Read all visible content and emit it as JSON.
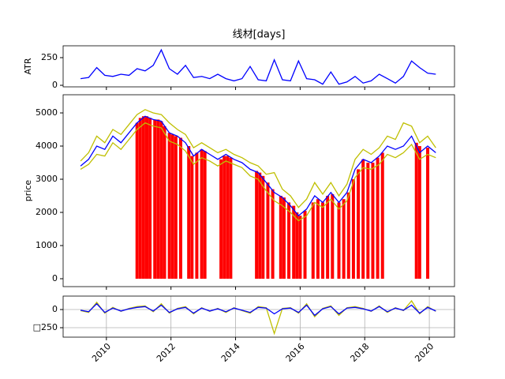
{
  "chart_data": [
    {
      "type": "line",
      "title": "线材[days]",
      "ylabel": "ATR",
      "x": [
        2009.2,
        2009.45,
        2009.7,
        2009.95,
        2010.2,
        2010.45,
        2010.7,
        2010.95,
        2011.2,
        2011.45,
        2011.7,
        2011.95,
        2012.2,
        2012.45,
        2012.7,
        2012.95,
        2013.2,
        2013.45,
        2013.7,
        2013.95,
        2014.2,
        2014.45,
        2014.7,
        2014.95,
        2015.2,
        2015.45,
        2015.7,
        2015.95,
        2016.2,
        2016.45,
        2016.7,
        2016.95,
        2017.2,
        2017.45,
        2017.7,
        2017.95,
        2018.2,
        2018.45,
        2018.7,
        2018.95,
        2019.2,
        2019.45,
        2019.7,
        2019.95,
        2020.2
      ],
      "series": [
        {
          "color": "#0000ff",
          "values": [
            60,
            70,
            160,
            90,
            80,
            100,
            90,
            150,
            130,
            180,
            320,
            150,
            100,
            180,
            70,
            80,
            60,
            100,
            60,
            40,
            60,
            170,
            50,
            40,
            230,
            50,
            40,
            220,
            60,
            50,
            10,
            120,
            10,
            30,
            80,
            20,
            40,
            100,
            60,
            20,
            80,
            220,
            160,
            110,
            100
          ]
        }
      ],
      "xlim": [
        2008.66,
        2020.78
      ],
      "xticks": [
        2010,
        2012,
        2014,
        2016,
        2018,
        2020
      ],
      "ylim": [
        -14,
        357
      ],
      "yticks": [
        0,
        250
      ],
      "grid": false
    },
    {
      "type": "line",
      "ylabel": "price",
      "x": [
        2009.2,
        2009.45,
        2009.7,
        2009.95,
        2010.2,
        2010.45,
        2010.7,
        2010.95,
        2011.2,
        2011.45,
        2011.7,
        2011.95,
        2012.2,
        2012.45,
        2012.7,
        2012.95,
        2013.2,
        2013.45,
        2013.7,
        2013.95,
        2014.2,
        2014.45,
        2014.7,
        2014.95,
        2015.2,
        2015.45,
        2015.7,
        2015.95,
        2016.2,
        2016.45,
        2016.7,
        2016.95,
        2017.2,
        2017.45,
        2017.7,
        2017.95,
        2018.2,
        2018.45,
        2018.7,
        2018.95,
        2019.2,
        2019.45,
        2019.7,
        2019.95,
        2020.2
      ],
      "series": [
        {
          "type": "bar",
          "color": "#ff0000",
          "x": [
            2010.95,
            2011.05,
            2011.15,
            2011.25,
            2011.35,
            2011.5,
            2011.6,
            2011.7,
            2011.8,
            2011.95,
            2012.05,
            2012.15,
            2012.3,
            2012.55,
            2012.65,
            2012.8,
            2012.95,
            2013.05,
            2013.55,
            2013.65,
            2013.75,
            2013.85,
            2014.65,
            2014.75,
            2014.85,
            2015.0,
            2015.15,
            2015.4,
            2015.5,
            2015.65,
            2015.8,
            2015.9,
            2016.0,
            2016.15,
            2016.4,
            2016.55,
            2016.7,
            2016.85,
            2017.0,
            2017.2,
            2017.35,
            2017.5,
            2017.65,
            2017.8,
            2017.95,
            2018.1,
            2018.25,
            2018.4,
            2018.55,
            2019.6,
            2019.7,
            2019.95
          ],
          "values": [
            4700,
            4850,
            4900,
            4900,
            4850,
            4800,
            4800,
            4750,
            4600,
            4400,
            4350,
            4300,
            4250,
            4000,
            3700,
            3800,
            3900,
            3850,
            3600,
            3700,
            3700,
            3650,
            3250,
            3200,
            3100,
            2900,
            2700,
            2500,
            2450,
            2300,
            2200,
            2000,
            1900,
            2050,
            2300,
            2400,
            2300,
            2500,
            2550,
            2300,
            2400,
            2600,
            3000,
            3300,
            3600,
            3500,
            3500,
            3650,
            3800,
            4100,
            4000,
            3950
          ]
        },
        {
          "color": "#bfbf00",
          "values": [
            3550,
            3800,
            4300,
            4100,
            4500,
            4350,
            4650,
            4950,
            5100,
            5000,
            4950,
            4700,
            4500,
            4350,
            3950,
            4100,
            3950,
            3800,
            3900,
            3750,
            3650,
            3500,
            3400,
            3150,
            3200,
            2700,
            2500,
            2150,
            2400,
            2900,
            2550,
            2900,
            2500,
            2850,
            3600,
            3900,
            3750,
            3950,
            4300,
            4200,
            4700,
            4600,
            4100,
            4300,
            3950
          ]
        },
        {
          "color": "#bfbf00",
          "values": [
            3300,
            3450,
            3750,
            3700,
            4100,
            3900,
            4200,
            4500,
            4700,
            4600,
            4550,
            4150,
            4050,
            3850,
            3450,
            3650,
            3550,
            3400,
            3550,
            3450,
            3350,
            3100,
            3000,
            2650,
            2350,
            2200,
            2000,
            1750,
            1900,
            2300,
            2150,
            2400,
            2100,
            2350,
            3050,
            3350,
            3300,
            3450,
            3750,
            3650,
            3800,
            4050,
            3600,
            3750,
            3650
          ]
        },
        {
          "color": "#0000ff",
          "values": [
            3400,
            3600,
            4000,
            3900,
            4300,
            4100,
            4400,
            4700,
            4900,
            4800,
            4750,
            4400,
            4300,
            4100,
            3700,
            3900,
            3750,
            3600,
            3750,
            3600,
            3500,
            3300,
            3200,
            2900,
            2600,
            2450,
            2200,
            1900,
            2100,
            2500,
            2300,
            2600,
            2300,
            2600,
            3300,
            3600,
            3500,
            3700,
            4000,
            3900,
            4000,
            4300,
            3800,
            4000,
            3800
          ]
        }
      ],
      "xlim": [
        2008.66,
        2020.78
      ],
      "xticks": [
        2010,
        2012,
        2014,
        2016,
        2018,
        2020
      ],
      "ylim": [
        -238,
        5548
      ],
      "yticks": [
        0,
        1000,
        2000,
        3000,
        4000,
        5000
      ],
      "grid": false
    },
    {
      "type": "line",
      "x": [
        2009.2,
        2009.45,
        2009.7,
        2009.95,
        2010.2,
        2010.45,
        2010.7,
        2010.95,
        2011.2,
        2011.45,
        2011.7,
        2011.95,
        2012.2,
        2012.45,
        2012.7,
        2012.95,
        2013.2,
        2013.45,
        2013.7,
        2013.95,
        2014.2,
        2014.45,
        2014.7,
        2014.95,
        2015.2,
        2015.45,
        2015.7,
        2015.95,
        2016.2,
        2016.45,
        2016.7,
        2016.95,
        2017.2,
        2017.45,
        2017.7,
        2017.95,
        2018.2,
        2018.45,
        2018.7,
        2018.95,
        2019.2,
        2019.45,
        2019.7,
        2019.95,
        2020.2
      ],
      "series": [
        {
          "color": "#bfbf00",
          "values": [
            -15,
            -40,
            100,
            -50,
            30,
            -25,
            15,
            40,
            50,
            -30,
            80,
            -50,
            15,
            40,
            -60,
            25,
            -25,
            15,
            -40,
            25,
            -15,
            -50,
            40,
            25,
            -330,
            15,
            25,
            -50,
            80,
            -100,
            15,
            50,
            -80,
            25,
            40,
            15,
            -25,
            50,
            -40,
            25,
            -15,
            120,
            -60,
            40,
            -25
          ]
        },
        {
          "color": "#0000ff",
          "values": [
            -10,
            -30,
            80,
            -40,
            20,
            -20,
            10,
            30,
            40,
            -20,
            60,
            -40,
            10,
            30,
            -50,
            20,
            -20,
            10,
            -30,
            20,
            -10,
            -40,
            30,
            20,
            -60,
            10,
            20,
            -40,
            60,
            -80,
            10,
            40,
            -60,
            20,
            30,
            10,
            -20,
            40,
            -30,
            20,
            -10,
            60,
            -50,
            30,
            -20
          ]
        }
      ],
      "xlim": [
        2008.66,
        2020.78
      ],
      "xticks": [
        2010,
        2012,
        2014,
        2016,
        2018,
        2020
      ],
      "ylim": [
        -380,
        185
      ],
      "yticks": [
        0,
        {
          "value": -250,
          "label": "□250"
        }
      ],
      "grid": true
    }
  ]
}
